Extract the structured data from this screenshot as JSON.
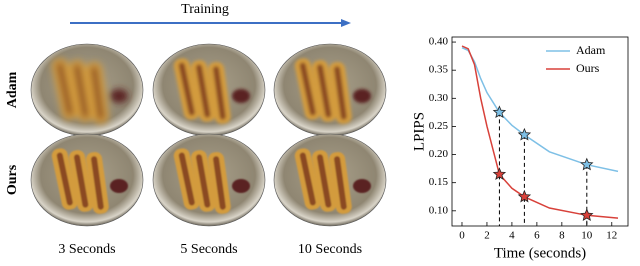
{
  "figure": {
    "arrow_label": "Training",
    "row_labels": [
      "Adam",
      "Ours"
    ],
    "column_labels": [
      "3 Seconds",
      "5 Seconds",
      "10 Seconds"
    ]
  },
  "chart_data": {
    "type": "line",
    "xlabel": "Time (seconds)",
    "ylabel": "LPIPS",
    "x": [
      0,
      0.5,
      1,
      1.5,
      2,
      3,
      4,
      5,
      7,
      10,
      12.5
    ],
    "series": [
      {
        "name": "Adam",
        "color": "#7ec0e6",
        "values": [
          0.39,
          0.385,
          0.365,
          0.335,
          0.31,
          0.275,
          0.252,
          0.235,
          0.205,
          0.182,
          0.17
        ]
      },
      {
        "name": "Ours",
        "color": "#d8413a",
        "values": [
          0.393,
          0.388,
          0.36,
          0.3,
          0.25,
          0.165,
          0.14,
          0.125,
          0.105,
          0.092,
          0.087
        ]
      }
    ],
    "highlight_x": [
      3,
      5,
      10
    ],
    "xlim": [
      -0.8,
      13.3
    ],
    "xticks": [
      0,
      2,
      4,
      6,
      8,
      10,
      12
    ],
    "ylim": [
      0.073,
      0.409
    ],
    "yticks": [
      {
        "value": 0.1,
        "label": "0.10"
      },
      0.15,
      {
        "value": 0.2,
        "label": "0.20"
      },
      0.25,
      {
        "value": 0.3,
        "label": "0.30"
      },
      0.35,
      {
        "value": 0.4,
        "label": "0.40"
      }
    ],
    "legend": "upper right",
    "grid": false
  }
}
